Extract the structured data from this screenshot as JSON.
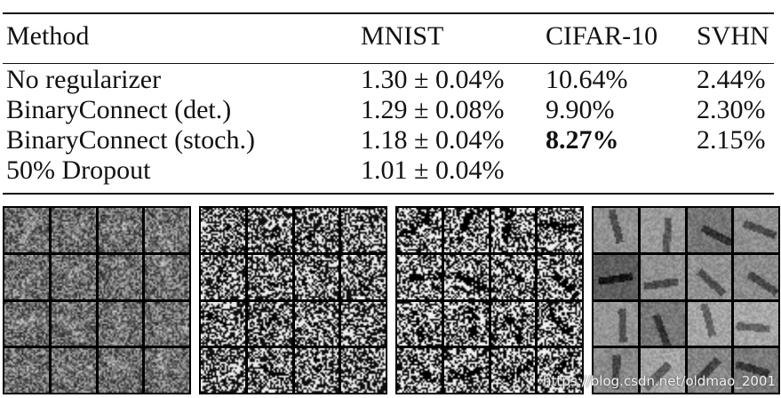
{
  "table": {
    "headers": [
      "Method",
      "MNIST",
      "CIFAR-10",
      "SVHN"
    ],
    "rows": [
      {
        "method": "No regularizer",
        "mnist": "1.30 ± 0.04%",
        "cifar10": "10.64%",
        "svhn": "2.44%"
      },
      {
        "method": "BinaryConnect (det.)",
        "mnist": "1.29 ± 0.08%",
        "cifar10": "9.90%",
        "svhn": "2.30%"
      },
      {
        "method": "BinaryConnect (stoch.)",
        "mnist": "1.18 ± 0.04%",
        "cifar10": "8.27%",
        "svhn": "2.15%"
      },
      {
        "method": "50% Dropout",
        "mnist": "1.01 ± 0.04%",
        "cifar10": "",
        "svhn": ""
      }
    ],
    "bold_cells": [
      "rows.2.cifar10"
    ]
  },
  "filter_panels": [
    {
      "style": "fine-noise-grayscale"
    },
    {
      "style": "high-contrast-binary-noise"
    },
    {
      "style": "high-contrast-binary-strokes"
    },
    {
      "style": "smooth-grayscale"
    }
  ],
  "watermark": "https://blog.csdn.net/oldmao_2001"
}
